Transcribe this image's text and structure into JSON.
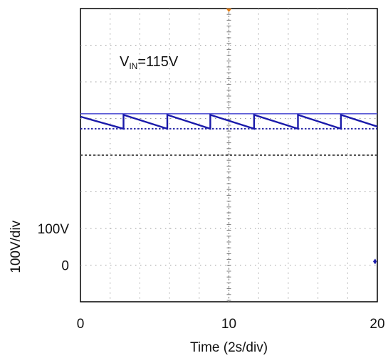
{
  "chart_data": {
    "type": "line",
    "title": "",
    "xlabel": "Time (2s/div)",
    "ylabel": "100V/div",
    "xlim": [
      0,
      20
    ],
    "ylim": [
      -100,
      700
    ],
    "x_tick_labels": [
      "0",
      "10",
      "20"
    ],
    "x_tick_values": [
      0,
      10,
      20
    ],
    "y_tick_labels": [
      "100V",
      "0"
    ],
    "y_tick_values": [
      100,
      0
    ],
    "annotation": {
      "main": "V",
      "sub": "IN",
      "suffix": "=115V"
    },
    "grid": true,
    "reference_lines": {
      "upper_solid": 413,
      "lower_dotted": 372,
      "middle_dashed": 300
    },
    "series": [
      {
        "color": "#1a1aaa",
        "style": "sawtooth",
        "x": [
          0,
          2.9,
          2.9,
          5.85,
          5.85,
          8.75,
          8.75,
          11.7,
          11.7,
          14.65,
          14.65,
          17.55,
          17.55,
          20
        ],
        "y": [
          405,
          372,
          410,
          372,
          410,
          372,
          410,
          372,
          410,
          372,
          410,
          372,
          410,
          378
        ]
      }
    ],
    "end_marker": {
      "x": 20,
      "y": 10
    },
    "trigger_marker_x": 10
  }
}
